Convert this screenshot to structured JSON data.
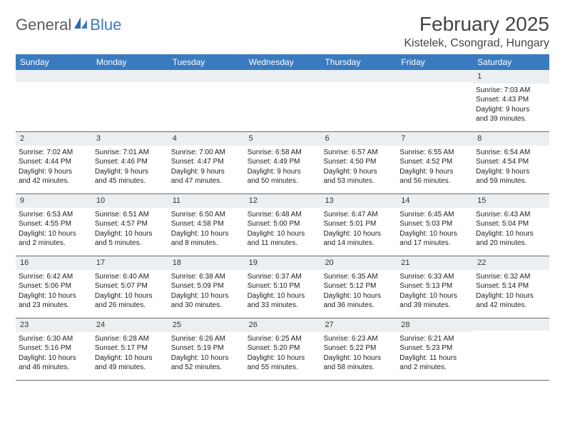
{
  "brand": {
    "word1": "General",
    "word2": "Blue"
  },
  "title": "February 2025",
  "location": "Kistelek, Csongrad, Hungary",
  "colors": {
    "header_bg": "#3a7bbf",
    "header_text": "#ffffff",
    "daynum_bg": "#eceff1",
    "border": "#6a6a6a",
    "text": "#222222",
    "logo_gray": "#5a5a5a",
    "logo_blue": "#3a7bbf",
    "page_bg": "#ffffff"
  },
  "weekdays": [
    "Sunday",
    "Monday",
    "Tuesday",
    "Wednesday",
    "Thursday",
    "Friday",
    "Saturday"
  ],
  "weeks": [
    [
      {
        "empty": true
      },
      {
        "empty": true
      },
      {
        "empty": true
      },
      {
        "empty": true
      },
      {
        "empty": true
      },
      {
        "empty": true
      },
      {
        "day": "1",
        "sunrise": "Sunrise: 7:03 AM",
        "sunset": "Sunset: 4:43 PM",
        "day1": "Daylight: 9 hours",
        "day2": "and 39 minutes."
      }
    ],
    [
      {
        "day": "2",
        "sunrise": "Sunrise: 7:02 AM",
        "sunset": "Sunset: 4:44 PM",
        "day1": "Daylight: 9 hours",
        "day2": "and 42 minutes."
      },
      {
        "day": "3",
        "sunrise": "Sunrise: 7:01 AM",
        "sunset": "Sunset: 4:46 PM",
        "day1": "Daylight: 9 hours",
        "day2": "and 45 minutes."
      },
      {
        "day": "4",
        "sunrise": "Sunrise: 7:00 AM",
        "sunset": "Sunset: 4:47 PM",
        "day1": "Daylight: 9 hours",
        "day2": "and 47 minutes."
      },
      {
        "day": "5",
        "sunrise": "Sunrise: 6:58 AM",
        "sunset": "Sunset: 4:49 PM",
        "day1": "Daylight: 9 hours",
        "day2": "and 50 minutes."
      },
      {
        "day": "6",
        "sunrise": "Sunrise: 6:57 AM",
        "sunset": "Sunset: 4:50 PM",
        "day1": "Daylight: 9 hours",
        "day2": "and 53 minutes."
      },
      {
        "day": "7",
        "sunrise": "Sunrise: 6:55 AM",
        "sunset": "Sunset: 4:52 PM",
        "day1": "Daylight: 9 hours",
        "day2": "and 56 minutes."
      },
      {
        "day": "8",
        "sunrise": "Sunrise: 6:54 AM",
        "sunset": "Sunset: 4:54 PM",
        "day1": "Daylight: 9 hours",
        "day2": "and 59 minutes."
      }
    ],
    [
      {
        "day": "9",
        "sunrise": "Sunrise: 6:53 AM",
        "sunset": "Sunset: 4:55 PM",
        "day1": "Daylight: 10 hours",
        "day2": "and 2 minutes."
      },
      {
        "day": "10",
        "sunrise": "Sunrise: 6:51 AM",
        "sunset": "Sunset: 4:57 PM",
        "day1": "Daylight: 10 hours",
        "day2": "and 5 minutes."
      },
      {
        "day": "11",
        "sunrise": "Sunrise: 6:50 AM",
        "sunset": "Sunset: 4:58 PM",
        "day1": "Daylight: 10 hours",
        "day2": "and 8 minutes."
      },
      {
        "day": "12",
        "sunrise": "Sunrise: 6:48 AM",
        "sunset": "Sunset: 5:00 PM",
        "day1": "Daylight: 10 hours",
        "day2": "and 11 minutes."
      },
      {
        "day": "13",
        "sunrise": "Sunrise: 6:47 AM",
        "sunset": "Sunset: 5:01 PM",
        "day1": "Daylight: 10 hours",
        "day2": "and 14 minutes."
      },
      {
        "day": "14",
        "sunrise": "Sunrise: 6:45 AM",
        "sunset": "Sunset: 5:03 PM",
        "day1": "Daylight: 10 hours",
        "day2": "and 17 minutes."
      },
      {
        "day": "15",
        "sunrise": "Sunrise: 6:43 AM",
        "sunset": "Sunset: 5:04 PM",
        "day1": "Daylight: 10 hours",
        "day2": "and 20 minutes."
      }
    ],
    [
      {
        "day": "16",
        "sunrise": "Sunrise: 6:42 AM",
        "sunset": "Sunset: 5:06 PM",
        "day1": "Daylight: 10 hours",
        "day2": "and 23 minutes."
      },
      {
        "day": "17",
        "sunrise": "Sunrise: 6:40 AM",
        "sunset": "Sunset: 5:07 PM",
        "day1": "Daylight: 10 hours",
        "day2": "and 26 minutes."
      },
      {
        "day": "18",
        "sunrise": "Sunrise: 6:38 AM",
        "sunset": "Sunset: 5:09 PM",
        "day1": "Daylight: 10 hours",
        "day2": "and 30 minutes."
      },
      {
        "day": "19",
        "sunrise": "Sunrise: 6:37 AM",
        "sunset": "Sunset: 5:10 PM",
        "day1": "Daylight: 10 hours",
        "day2": "and 33 minutes."
      },
      {
        "day": "20",
        "sunrise": "Sunrise: 6:35 AM",
        "sunset": "Sunset: 5:12 PM",
        "day1": "Daylight: 10 hours",
        "day2": "and 36 minutes."
      },
      {
        "day": "21",
        "sunrise": "Sunrise: 6:33 AM",
        "sunset": "Sunset: 5:13 PM",
        "day1": "Daylight: 10 hours",
        "day2": "and 39 minutes."
      },
      {
        "day": "22",
        "sunrise": "Sunrise: 6:32 AM",
        "sunset": "Sunset: 5:14 PM",
        "day1": "Daylight: 10 hours",
        "day2": "and 42 minutes."
      }
    ],
    [
      {
        "day": "23",
        "sunrise": "Sunrise: 6:30 AM",
        "sunset": "Sunset: 5:16 PM",
        "day1": "Daylight: 10 hours",
        "day2": "and 46 minutes."
      },
      {
        "day": "24",
        "sunrise": "Sunrise: 6:28 AM",
        "sunset": "Sunset: 5:17 PM",
        "day1": "Daylight: 10 hours",
        "day2": "and 49 minutes."
      },
      {
        "day": "25",
        "sunrise": "Sunrise: 6:26 AM",
        "sunset": "Sunset: 5:19 PM",
        "day1": "Daylight: 10 hours",
        "day2": "and 52 minutes."
      },
      {
        "day": "26",
        "sunrise": "Sunrise: 6:25 AM",
        "sunset": "Sunset: 5:20 PM",
        "day1": "Daylight: 10 hours",
        "day2": "and 55 minutes."
      },
      {
        "day": "27",
        "sunrise": "Sunrise: 6:23 AM",
        "sunset": "Sunset: 5:22 PM",
        "day1": "Daylight: 10 hours",
        "day2": "and 58 minutes."
      },
      {
        "day": "28",
        "sunrise": "Sunrise: 6:21 AM",
        "sunset": "Sunset: 5:23 PM",
        "day1": "Daylight: 11 hours",
        "day2": "and 2 minutes."
      },
      {
        "empty": true
      }
    ]
  ]
}
